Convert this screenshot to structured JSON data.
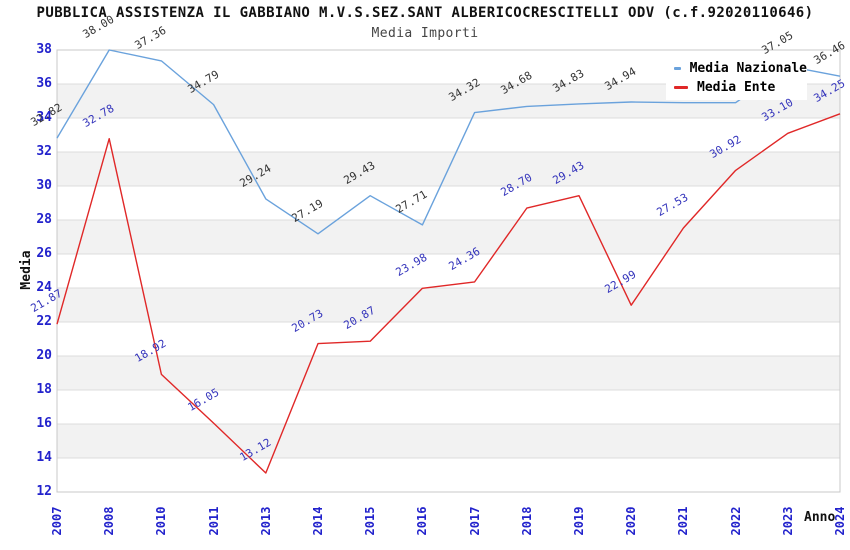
{
  "title": "PUBBLICA ASSISTENZA IL GABBIANO M.V.S.SEZ.SANT ALBERICOCRESCITELLI ODV (c.f.92020110646)",
  "subtitle": "Media Importi",
  "axes": {
    "y_title": "Media",
    "x_title": "Anno"
  },
  "legend": {
    "items": [
      {
        "label": "Media Nazionale",
        "color": "#6aa2dc"
      },
      {
        "label": "Media Ente",
        "color": "#e02828"
      }
    ]
  },
  "colors": {
    "national_line": "#6aa2dc",
    "entity_line": "#e02828",
    "tick_label": "#2222cc",
    "national_point_label": "#333333",
    "entity_point_label": "#3333bb",
    "band_fill": "#f2f2f2",
    "gridline": "#dcdcdc",
    "plot_border": "#c8c8c8"
  },
  "chart_data": {
    "type": "line",
    "title": "PUBBLICA ASSISTENZA IL GABBIANO M.V.S.SEZ.SANT ALBERICOCRESCITELLI ODV (c.f.92020110646)",
    "subtitle": "Media Importi",
    "xlabel": "Anno",
    "ylabel": "Media",
    "categories": [
      "2007",
      "2008",
      "2010",
      "2011",
      "2013",
      "2014",
      "2015",
      "2016",
      "2017",
      "2018",
      "2019",
      "2020",
      "2021",
      "2022",
      "2023",
      "2024"
    ],
    "series": [
      {
        "name": "Media Nazionale",
        "color": "#6aa2dc",
        "label_color": "#333333",
        "values": [
          32.82,
          38.0,
          37.36,
          34.79,
          29.24,
          27.19,
          29.43,
          27.71,
          34.32,
          34.68,
          34.83,
          34.94,
          34.9,
          34.9,
          37.05,
          36.46
        ],
        "labels": [
          "32.82",
          "38.00",
          "37.36",
          "34.79",
          "29.24",
          "27.19",
          "29.43",
          "27.71",
          "34.32",
          "34.68",
          "34.83",
          "34.94",
          null,
          null,
          "37.05",
          "36.46"
        ],
        "note": "2021 and 2022 point labels hidden behind legend box; values estimated from line position"
      },
      {
        "name": "Media Ente",
        "color": "#e02828",
        "label_color": "#3333bb",
        "values": [
          21.87,
          32.78,
          18.92,
          16.05,
          13.12,
          20.73,
          20.87,
          23.98,
          24.36,
          28.7,
          29.43,
          22.99,
          27.53,
          30.92,
          33.1,
          34.25
        ],
        "labels": [
          "21.87",
          "32.78",
          "18.92",
          "16.05",
          "13.12",
          "20.73",
          "20.87",
          "23.98",
          "24.36",
          "28.70",
          "29.43",
          "22.99",
          "27.53",
          "30.92",
          "33.10",
          "34.25"
        ]
      }
    ],
    "ylim": [
      12,
      38
    ],
    "yticks": [
      12,
      14,
      16,
      18,
      20,
      22,
      24,
      26,
      28,
      30,
      32,
      34,
      36,
      38
    ],
    "grid": "horizontal-only, alternating shaded bands every 2 units",
    "legend_position": "top-right inside plot, white box over chart"
  }
}
